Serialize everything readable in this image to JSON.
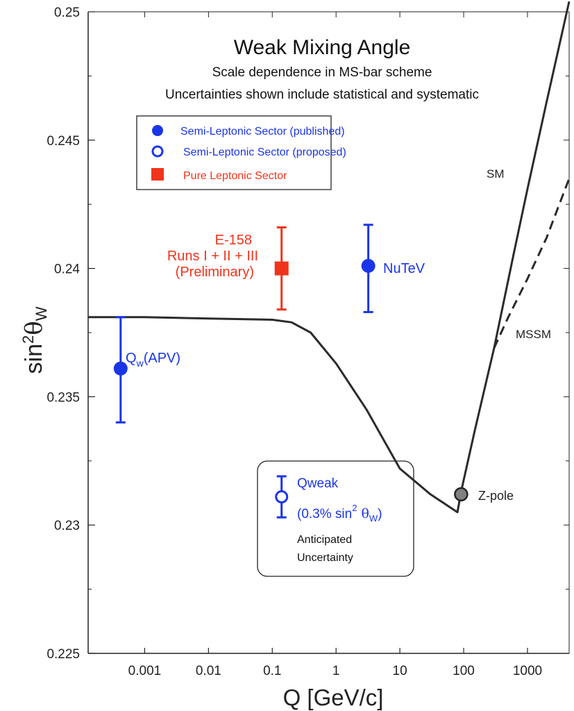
{
  "chart_data": {
    "type": "scatter",
    "title": "Weak Mixing Angle",
    "subtitle_lines": [
      "Scale dependence in MS-bar scheme",
      "Uncertainties shown include statistical and systematic"
    ],
    "xlabel": "Q [GeV/c]",
    "ylabel": "sin",
    "ylabel_sup": "2",
    "ylabel_theta": "θ",
    "ylabel_sub": "W",
    "x_scale": "log",
    "xlim": [
      0.00013,
      4500
    ],
    "ylim": [
      0.225,
      0.25
    ],
    "x_ticks": [
      {
        "value": 0.001,
        "label": "0.001"
      },
      {
        "value": 0.01,
        "label": "0.01"
      },
      {
        "value": 0.1,
        "label": "0.1"
      },
      {
        "value": 1,
        "label": "1"
      },
      {
        "value": 10,
        "label": "10"
      },
      {
        "value": 100,
        "label": "100"
      },
      {
        "value": 1000,
        "label": "1000"
      }
    ],
    "y_ticks": [
      {
        "value": 0.225,
        "label": "0.225"
      },
      {
        "value": 0.23,
        "label": "0.23"
      },
      {
        "value": 0.235,
        "label": "0.235"
      },
      {
        "value": 0.24,
        "label": "0.24"
      },
      {
        "value": 0.245,
        "label": "0.245"
      },
      {
        "value": 0.25,
        "label": "0.25"
      }
    ],
    "grid": false,
    "legend_position": "upper-left",
    "legend": [
      {
        "label": "Semi-Leptonic Sector (published)",
        "marker": "filled-circle",
        "color": "#1a35e8"
      },
      {
        "label": "Semi-Leptonic Sector (proposed)",
        "marker": "open-circle",
        "color": "#1a35e8"
      },
      {
        "label": "Pure Leptonic Sector",
        "marker": "filled-square",
        "color": "#f0341c"
      }
    ],
    "curves": [
      {
        "name": "SM",
        "style": "solid",
        "color": "#2b2b2b",
        "x": [
          0.00013,
          0.001,
          0.01,
          0.1,
          0.2,
          0.4,
          1,
          3,
          10,
          30,
          80,
          91,
          150,
          300,
          600,
          1000,
          2000,
          4500
        ],
        "y": [
          0.2381,
          0.2381,
          0.23805,
          0.238,
          0.2379,
          0.2375,
          0.2363,
          0.2345,
          0.2322,
          0.2312,
          0.2305,
          0.2313,
          0.2337,
          0.2369,
          0.2405,
          0.2431,
          0.2465,
          0.2504
        ]
      },
      {
        "name": "MSSM",
        "style": "dashed",
        "color": "#2b2b2b",
        "x": [
          300,
          500,
          1000,
          2000,
          4500
        ],
        "y": [
          0.2369,
          0.2381,
          0.2396,
          0.2412,
          0.2435
        ]
      }
    ],
    "curve_labels": [
      {
        "text": "SM",
        "x": 600,
        "y": 0.2462
      },
      {
        "text": "MSSM",
        "x": 1300,
        "y": 0.2375
      }
    ],
    "points": [
      {
        "name": "Q_W(APV)",
        "label": "Q",
        "label_sub": "w",
        "label_tail": "(APV)",
        "x": 0.00042,
        "y": 0.2361,
        "err_low": 0.0021,
        "err_high": 0.002,
        "marker": "filled-circle",
        "color": "#1a35e8"
      },
      {
        "name": "E-158",
        "label_lines": [
          "E-158",
          "Runs I + II + III",
          "(Preliminary)"
        ],
        "x": 0.14,
        "y": 0.24,
        "err_low": 0.0016,
        "err_high": 0.0016,
        "marker": "filled-square",
        "color": "#f0341c"
      },
      {
        "name": "NuTeV",
        "label": "NuTeV",
        "x": 3.2,
        "y": 0.2401,
        "err_low": 0.0018,
        "err_high": 0.0016,
        "marker": "filled-circle",
        "color": "#1a35e8"
      },
      {
        "name": "Z-pole",
        "label": "Z-pole",
        "x": 91.2,
        "y": 0.2312,
        "marker": "gray-circle",
        "color": "#808080"
      },
      {
        "name": "Qweak",
        "x": 0.14,
        "y": 0.2311,
        "err_low": 0.0008,
        "err_high": 0.0008,
        "marker": "open-circle",
        "color": "#1a35e8"
      }
    ],
    "qweak_box": {
      "line1": "Qweak",
      "line2_prefix": "(0.3% sin",
      "line2_sup": "2",
      "line2_theta": " θ",
      "line2_sub": "W",
      "line2_suffix": ")",
      "line3": "Anticipated",
      "line4": "Uncertainty"
    }
  }
}
